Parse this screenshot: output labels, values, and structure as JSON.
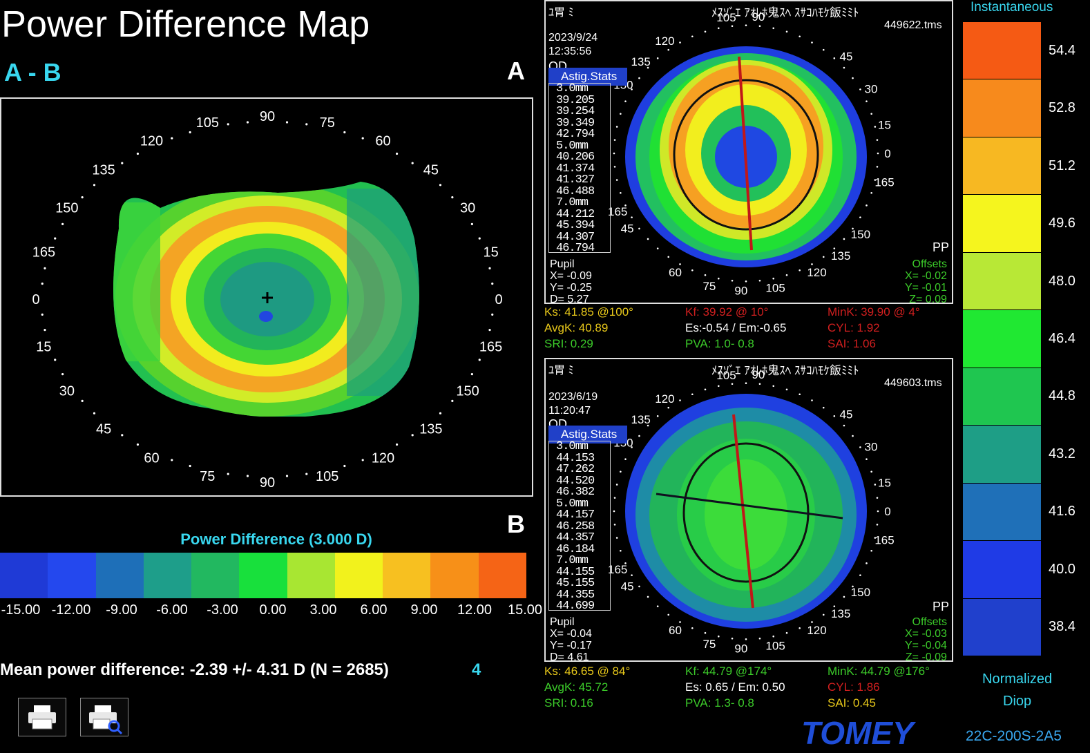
{
  "header": {
    "title": "Power Difference Map",
    "subtitle": "A - B",
    "label_a": "A",
    "label_b": "B"
  },
  "diff_map": {
    "axis_labels": [
      "90",
      "75",
      "60",
      "45",
      "30",
      "15",
      "0",
      "165",
      "150",
      "135",
      "120",
      "105",
      "90",
      "75",
      "60",
      "45",
      "30",
      "15",
      "0",
      "165",
      "150",
      "135",
      "120",
      "105"
    ],
    "scale_title": "Power Difference (3.000 D)",
    "scale_values": [
      "-15.00",
      "-12.00",
      "-9.00",
      "-6.00",
      "-3.00",
      "0.00",
      "3.00",
      "6.00",
      "9.00",
      "12.00",
      "15.00"
    ],
    "scale_colors": [
      "#1f3ad6",
      "#2448ee",
      "#1e6fb8",
      "#1e9e8a",
      "#22b860",
      "#18e03c",
      "#a8e632",
      "#f2f21c",
      "#f7c020",
      "#f79018",
      "#f56416"
    ],
    "mean_text": "Mean power difference: -2.39 +/-  4.31 D (N = 2685)",
    "mean_index": "4"
  },
  "toolbar": {
    "print_icon": "printer-icon",
    "print_preview_icon": "print-preview-icon"
  },
  "panels": [
    {
      "header_left": "ﾕ胃  ﾐ",
      "header_right": "ﾒｽｿﾞｴ  ｱｵﾚﾎ鬼ｽﾍ  ｽｻｺﾊﾓｹ飯ﾐﾐﾄ",
      "file": "449622.tms",
      "date": "2023/9/24",
      "time": "12:35:56",
      "eye": "OD",
      "astig_label": "Astig.Stats",
      "stats": [
        "3.0mm",
        "39.205",
        "39.254",
        "39.349",
        "42.794",
        "5.0mm",
        "40.206",
        "41.374",
        "41.327",
        "46.488",
        "7.0mm",
        "44.212",
        "45.394",
        "44.307",
        "46.794"
      ],
      "pupil": [
        "Pupil",
        "X= -0.09",
        "Y= -0.25",
        "D= 5.27"
      ],
      "pp": "PP",
      "offsets": [
        "Offsets",
        "X= -0.02",
        "Y= -0.01",
        "Z= 0.09"
      ],
      "ring_labels": [
        "120",
        "105",
        "90",
        "45",
        "135",
        "30",
        "150",
        "15",
        "0",
        "165",
        "165",
        "150",
        "45",
        "135",
        "60",
        "75",
        "90",
        "105",
        "120"
      ],
      "info_rows": [
        [
          "Ks: 41.85 @100°",
          "Kf: 39.92 @ 10°",
          "MinK: 39.90 @ 4°"
        ],
        [
          "AvgK: 40.89",
          "Es:-0.54 / Em:-0.65",
          "CYL: 1.92"
        ],
        [
          "SRI: 0.29",
          "PVA: 1.0- 0.8",
          "SAI: 1.06"
        ]
      ]
    },
    {
      "header_left": "ﾕ胃  ﾐ",
      "header_right": "ﾒｽｿﾞｴ  ｱｵﾚﾎ鬼ｽﾍ  ｽｻｺﾊﾓｹ飯ﾐﾐﾄ",
      "file": "449603.tms",
      "date": "2023/6/19",
      "time": "11:20:47",
      "eye": "OD",
      "astig_label": "Astig.Stats",
      "stats": [
        "3.0mm",
        "44.153",
        "47.262",
        "44.520",
        "46.382",
        "5.0mm",
        "44.157",
        "46.258",
        "44.357",
        "46.184",
        "7.0mm",
        "44.155",
        "45.155",
        "44.355",
        "44.699"
      ],
      "pupil": [
        "Pupil",
        "X= -0.04",
        "Y= -0.17",
        "D= 4.61"
      ],
      "pp": "PP",
      "offsets": [
        "Offsets",
        "X= -0.03",
        "Y= -0.04",
        "Z= -0.09"
      ],
      "ring_labels": [
        "120",
        "105",
        "90",
        "45",
        "135",
        "30",
        "150",
        "15",
        "0",
        "165",
        "165",
        "150",
        "45",
        "135",
        "60",
        "75",
        "90",
        "105",
        "120"
      ],
      "info_rows": [
        [
          "Ks: 46.65 @ 84°",
          "Kf: 44.79 @174°",
          "MinK: 44.79 @176°"
        ],
        [
          "AvgK: 45.72",
          "Es: 0.65 / Em: 0.50",
          "CYL: 1.86"
        ],
        [
          "SRI: 0.16",
          "PVA: 1.3- 0.8",
          "SAI: 0.45"
        ]
      ]
    }
  ],
  "legend": {
    "title": "Instantaneous",
    "values": [
      "54.4",
      "52.8",
      "51.2",
      "49.6",
      "48.0",
      "46.4",
      "44.8",
      "43.2",
      "41.6",
      "40.0",
      "38.4"
    ],
    "colors": [
      "#f55a14",
      "#f78a1c",
      "#f7b822",
      "#f5f51e",
      "#b8e836",
      "#20e832",
      "#1fc650",
      "#1e9e86",
      "#1f70b8",
      "#1f3be6",
      "#2040cc"
    ],
    "footer1": "Normalized",
    "footer2": "Diop"
  },
  "brand": {
    "logo": "TOMEY",
    "model": "22C-200S-2A5"
  },
  "info_colors": {
    "yellow": "#e8c81a",
    "white": "#ffffff",
    "red": "#d21f1f",
    "green": "#3ccc2a"
  }
}
